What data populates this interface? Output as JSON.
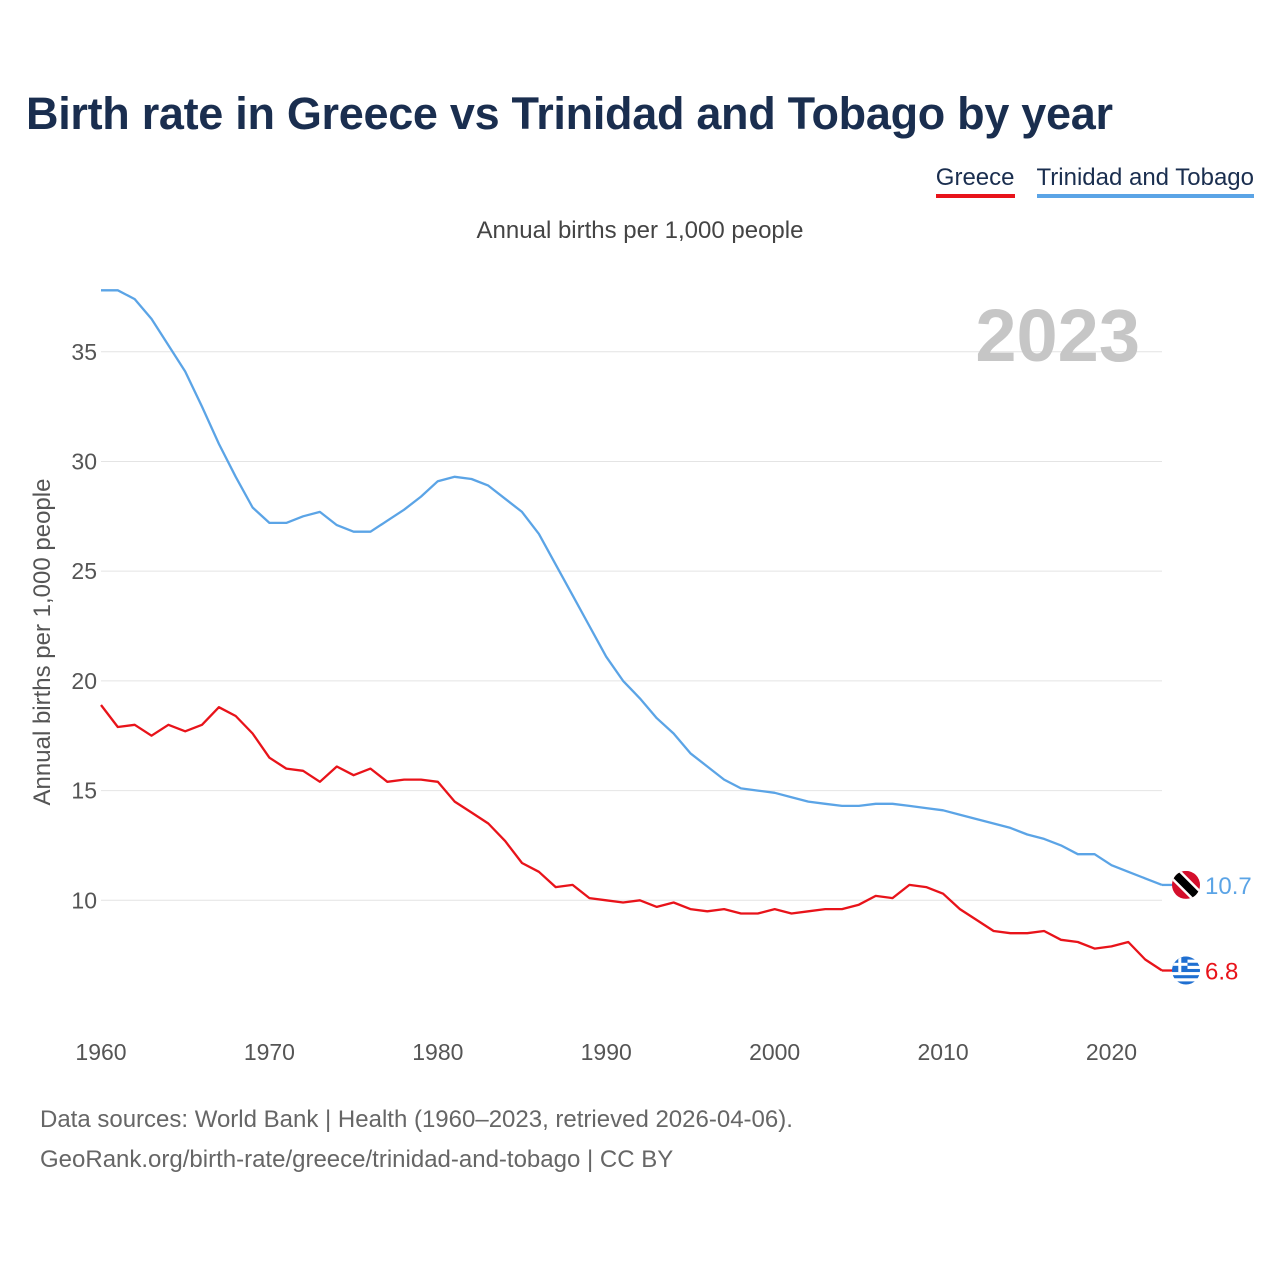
{
  "title": "Birth rate in Greece vs Trinidad and Tobago by year",
  "subtitle": "Annual births per 1,000 people",
  "legend": [
    {
      "label": "Greece",
      "color": "#e8131a"
    },
    {
      "label": "Trinidad and Tobago",
      "color": "#5ba4e6"
    }
  ],
  "year_watermark": "2023",
  "footer": {
    "line1": "Data sources: World Bank | Health (1960–2023, retrieved 2026-04-06).",
    "line2": "GeoRank.org/birth-rate/greece/trinidad-and-tobago | CC BY"
  },
  "chart_data": {
    "type": "line",
    "title": "Birth rate in Greece vs Trinidad and Tobago by year",
    "xlabel": "",
    "ylabel": "Annual births per 1,000 people",
    "xlim": [
      1960,
      2023
    ],
    "ylim": [
      5,
      39
    ],
    "x_ticks": [
      1960,
      1970,
      1980,
      1990,
      2000,
      2010,
      2020
    ],
    "y_ticks": [
      10,
      15,
      20,
      25,
      30,
      35
    ],
    "grid": true,
    "x": [
      1960,
      1961,
      1962,
      1963,
      1964,
      1965,
      1966,
      1967,
      1968,
      1969,
      1970,
      1971,
      1972,
      1973,
      1974,
      1975,
      1976,
      1977,
      1978,
      1979,
      1980,
      1981,
      1982,
      1983,
      1984,
      1985,
      1986,
      1987,
      1988,
      1989,
      1990,
      1991,
      1992,
      1993,
      1994,
      1995,
      1996,
      1997,
      1998,
      1999,
      2000,
      2001,
      2002,
      2003,
      2004,
      2005,
      2006,
      2007,
      2008,
      2009,
      2010,
      2011,
      2012,
      2013,
      2014,
      2015,
      2016,
      2017,
      2018,
      2019,
      2020,
      2021,
      2022,
      2023
    ],
    "series": [
      {
        "name": "Greece",
        "color": "#e8131a",
        "end_label": "6.8",
        "values": [
          18.9,
          17.9,
          18.0,
          17.5,
          18.0,
          17.7,
          18.0,
          18.8,
          18.4,
          17.6,
          16.5,
          16.0,
          15.9,
          15.4,
          16.1,
          15.7,
          16.0,
          15.4,
          15.5,
          15.5,
          15.4,
          14.5,
          14.0,
          13.5,
          12.7,
          11.7,
          11.3,
          10.6,
          10.7,
          10.1,
          10.0,
          9.9,
          10.0,
          9.7,
          9.9,
          9.6,
          9.5,
          9.6,
          9.4,
          9.4,
          9.6,
          9.4,
          9.5,
          9.6,
          9.6,
          9.8,
          10.2,
          10.1,
          10.7,
          10.6,
          10.3,
          9.6,
          9.1,
          8.6,
          8.5,
          8.5,
          8.6,
          8.2,
          8.1,
          7.8,
          7.9,
          8.1,
          7.3,
          6.8
        ]
      },
      {
        "name": "Trinidad and Tobago",
        "color": "#5ba4e6",
        "end_label": "10.7",
        "values": [
          37.8,
          37.8,
          37.4,
          36.5,
          35.3,
          34.1,
          32.5,
          30.8,
          29.3,
          27.9,
          27.2,
          27.2,
          27.5,
          27.7,
          27.1,
          26.8,
          26.8,
          27.3,
          27.8,
          28.4,
          29.1,
          29.3,
          29.2,
          28.9,
          28.3,
          27.7,
          26.7,
          25.3,
          23.9,
          22.5,
          21.1,
          20.0,
          19.2,
          18.3,
          17.6,
          16.7,
          16.1,
          15.5,
          15.1,
          15.0,
          14.9,
          14.7,
          14.5,
          14.4,
          14.3,
          14.3,
          14.4,
          14.4,
          14.3,
          14.2,
          14.1,
          13.9,
          13.7,
          13.5,
          13.3,
          13.0,
          12.8,
          12.5,
          12.1,
          12.1,
          11.6,
          11.3,
          11.0,
          10.7
        ]
      }
    ]
  }
}
